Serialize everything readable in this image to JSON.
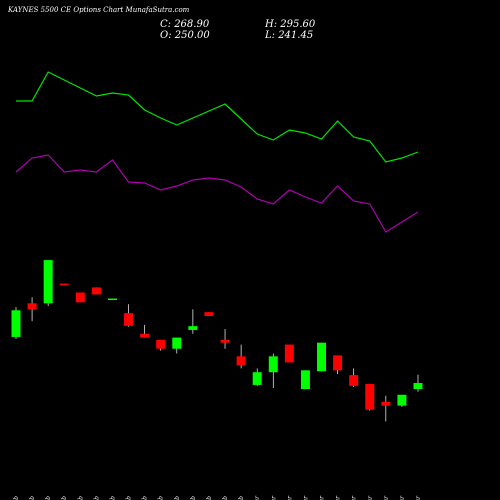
{
  "chart_data": {
    "type": "candlestick",
    "title": "KAYNES 5500 CE Options Chart MunafaSutra.com",
    "header": [
      "C: 268.90",
      "H: 295.60",
      "O: 250.00",
      "L: 241.45"
    ],
    "categories": [
      "09 Feb",
      "10 Feb",
      "11 Feb",
      "12 Feb",
      "13 Feb",
      "14 Feb",
      "17 Feb",
      "18 Feb",
      "19 Feb",
      "20 Feb",
      "21 Feb",
      "24 Feb",
      "25 Feb",
      "27 Feb",
      "28 Feb",
      "03 Mar",
      "04 Mar",
      "05 Mar",
      "06 Mar",
      "07 Mar",
      "10 Mar",
      "11 Mar",
      "12 Mar",
      "13 Mar",
      "17 Mar",
      "18 Mar"
    ],
    "open": [
      414,
      520,
      520,
      582,
      554,
      570,
      532,
      489,
      424,
      405,
      377,
      436,
      492,
      405,
      353,
      263,
      303,
      390,
      250,
      306,
      356,
      294,
      266,
      210,
      198,
      250
    ],
    "close": [
      498,
      501,
      656,
      579,
      523,
      548,
      535,
      449,
      412,
      377,
      412,
      448,
      480,
      396,
      325,
      303,
      353,
      334,
      309,
      396,
      309,
      260,
      185,
      198,
      232,
      268.9
    ],
    "high": [
      508,
      539,
      656,
      582,
      554,
      570,
      535,
      517,
      452,
      405,
      412,
      501,
      492,
      439,
      390,
      315,
      362,
      390,
      309,
      396,
      356,
      315,
      266,
      229,
      232,
      295.6
    ],
    "low": [
      408,
      464,
      511,
      579,
      523,
      548,
      532,
      446,
      412,
      371,
      362,
      424,
      480,
      377,
      315,
      260,
      253,
      334,
      250,
      306,
      297,
      257,
      182,
      148,
      194,
      241.45
    ],
    "up_color": "#00ff00",
    "down_color": "#ff0000",
    "ylim": [
      140,
      672
    ],
    "series": [
      {
        "color": "#00e600",
        "axis": "y2",
        "values": [
          74.5,
          74.5,
          89,
          85,
          81,
          77,
          78.5,
          77.5,
          70,
          66,
          62.5,
          66,
          69.5,
          73,
          65.5,
          58,
          55,
          60,
          58.5,
          55.5,
          64.5,
          56.5,
          54.5,
          44,
          46,
          49
        ]
      },
      {
        "color": "#b000b0",
        "axis": "y2",
        "values": [
          39,
          46,
          47.5,
          39,
          40,
          39,
          45,
          34,
          33.5,
          30,
          32,
          35,
          36,
          35,
          31.5,
          25.5,
          23,
          30,
          26.5,
          23.5,
          32,
          24.5,
          23,
          9,
          14,
          19
        ]
      }
    ],
    "y2lim": [
      0,
      100
    ]
  }
}
